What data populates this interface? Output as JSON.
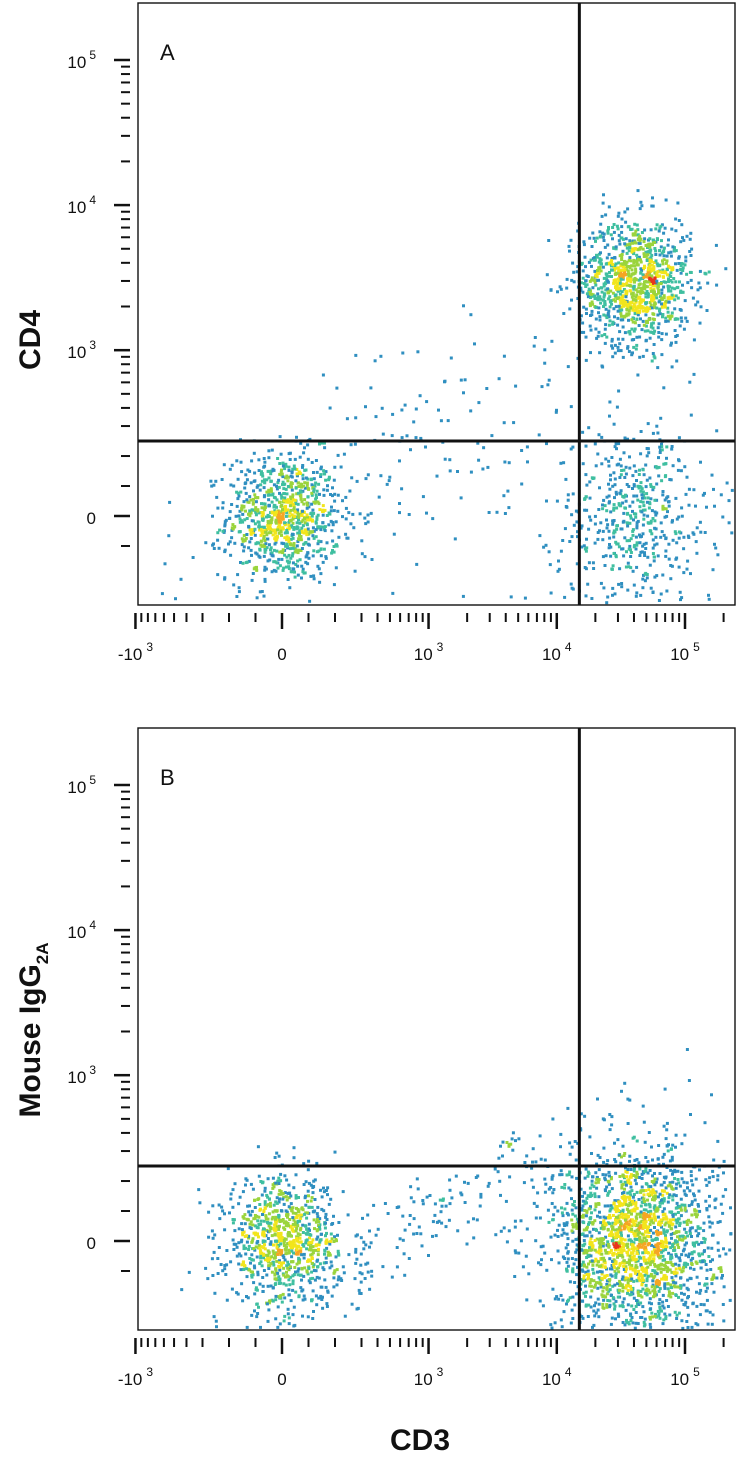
{
  "chart_data": [
    {
      "type": "scatter",
      "panel_label": "A",
      "xlabel": "CD3",
      "ylabel": "CD4",
      "ylabel_sub": "",
      "x_scale": "biexponential",
      "y_scale": "biexponential",
      "x_tick_labels": [
        {
          "base": "-10",
          "exp": "3"
        },
        {
          "base": "0",
          "exp": ""
        },
        {
          "base": "10",
          "exp": "3"
        },
        {
          "base": "10",
          "exp": "4"
        },
        {
          "base": "10",
          "exp": "5"
        }
      ],
      "y_tick_labels": [
        {
          "base": "0",
          "exp": ""
        },
        {
          "base": "10",
          "exp": "3"
        },
        {
          "base": "10",
          "exp": "4"
        },
        {
          "base": "10",
          "exp": "5"
        }
      ],
      "gates": {
        "x": 15000,
        "y": 250
      },
      "density_colormap": [
        "#2a4fa8",
        "#2f8fc0",
        "#3fbfa0",
        "#9ad43c",
        "#f2e51c",
        "#f5a623",
        "#e8341c"
      ],
      "populations": [
        {
          "x": 0,
          "y": 0,
          "spread_x": "low",
          "spread_y": "low",
          "count": 900
        },
        {
          "x": 40000,
          "y": 3000,
          "spread_x": "low",
          "spread_y": "low",
          "count": 1100
        },
        {
          "x": 40000,
          "y": 0,
          "spread_x": "medium",
          "spread_y": "medium",
          "count": 550
        },
        {
          "x": 800,
          "y": 200,
          "spread_x": "high",
          "spread_y": "high",
          "count": 180
        }
      ]
    },
    {
      "type": "scatter",
      "panel_label": "B",
      "xlabel": "CD3",
      "ylabel": "Mouse IgG",
      "ylabel_sub": "2A",
      "x_scale": "biexponential",
      "y_scale": "biexponential",
      "x_tick_labels": [
        {
          "base": "-10",
          "exp": "3"
        },
        {
          "base": "0",
          "exp": ""
        },
        {
          "base": "10",
          "exp": "3"
        },
        {
          "base": "10",
          "exp": "4"
        },
        {
          "base": "10",
          "exp": "5"
        }
      ],
      "y_tick_labels": [
        {
          "base": "0",
          "exp": ""
        },
        {
          "base": "10",
          "exp": "3"
        },
        {
          "base": "10",
          "exp": "4"
        },
        {
          "base": "10",
          "exp": "5"
        }
      ],
      "gates": {
        "x": 15000,
        "y": 250
      },
      "density_colormap": [
        "#2a4fa8",
        "#2f8fc0",
        "#3fbfa0",
        "#9ad43c",
        "#f2e51c",
        "#f5a623",
        "#e8341c"
      ],
      "populations": [
        {
          "x": 0,
          "y": 0,
          "spread_x": "low",
          "spread_y": "low",
          "count": 900
        },
        {
          "x": 40000,
          "y": 0,
          "spread_x": "medium",
          "spread_y": "medium",
          "count": 2000
        },
        {
          "x": 800,
          "y": 50,
          "spread_x": "high",
          "spread_y": "medium",
          "count": 220
        }
      ]
    }
  ]
}
